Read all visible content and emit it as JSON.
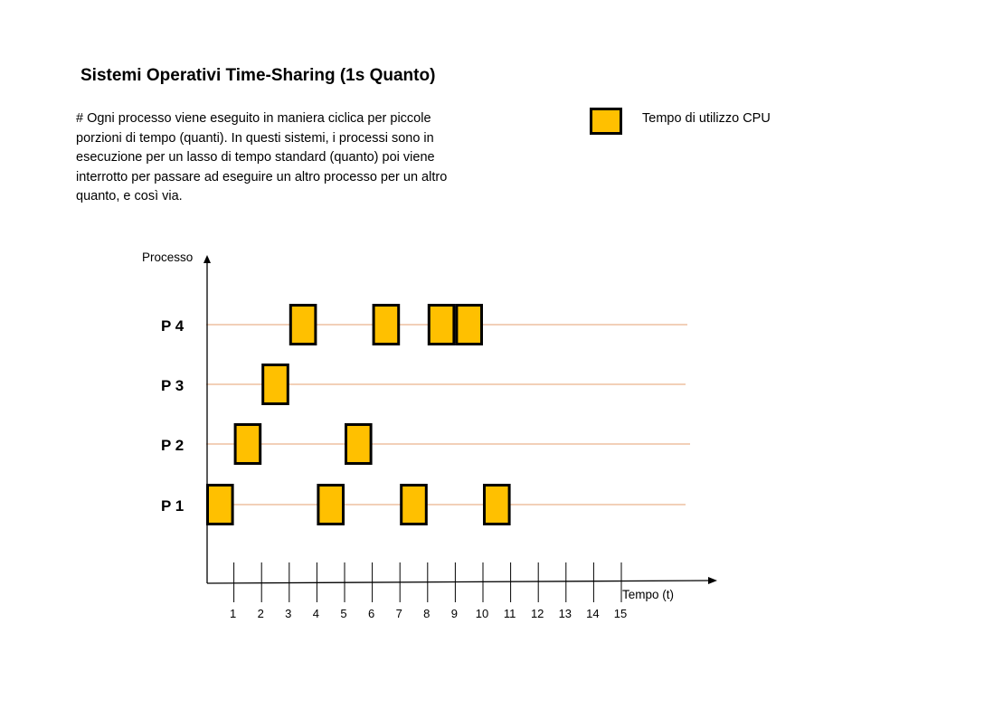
{
  "title": "Sistemi Operativi Time-Sharing (1s Quanto)",
  "description": "# Ogni processo viene eseguito in maniera ciclica per piccole porzioni di tempo (quanti). In questi sistemi, i processi sono in esecuzione per un lasso di tempo standard (quanto) poi viene interrotto per passare ad eseguire un altro processo per un altro quanto, e così via.",
  "legend": {
    "label": "Tempo di utilizzo CPU",
    "color": "#ffc000"
  },
  "colors": {
    "block_fill": "#ffc000",
    "block_border": "#000000",
    "lane_line": "#e6a070",
    "axis": "#000000"
  },
  "chart_data": {
    "type": "gantt",
    "ylabel": "Processo",
    "xlabel": "Tempo (t)",
    "processes": [
      "P 1",
      "P 2",
      "P 3",
      "P 4"
    ],
    "ticks": [
      "1",
      "2",
      "3",
      "4",
      "5",
      "6",
      "7",
      "8",
      "9",
      "10",
      "11",
      "12",
      "13",
      "14",
      "15"
    ],
    "slots": [
      {
        "process": "P 1",
        "start": 0,
        "end": 1
      },
      {
        "process": "P 2",
        "start": 1,
        "end": 2
      },
      {
        "process": "P 3",
        "start": 2,
        "end": 3
      },
      {
        "process": "P 4",
        "start": 3,
        "end": 4
      },
      {
        "process": "P 1",
        "start": 4,
        "end": 5
      },
      {
        "process": "P 2",
        "start": 5,
        "end": 6
      },
      {
        "process": "P 4",
        "start": 6,
        "end": 7
      },
      {
        "process": "P 1",
        "start": 7,
        "end": 8
      },
      {
        "process": "P 4",
        "start": 8,
        "end": 9
      },
      {
        "process": "P 4",
        "start": 9,
        "end": 10
      },
      {
        "process": "P 1",
        "start": 10,
        "end": 11
      }
    ]
  }
}
